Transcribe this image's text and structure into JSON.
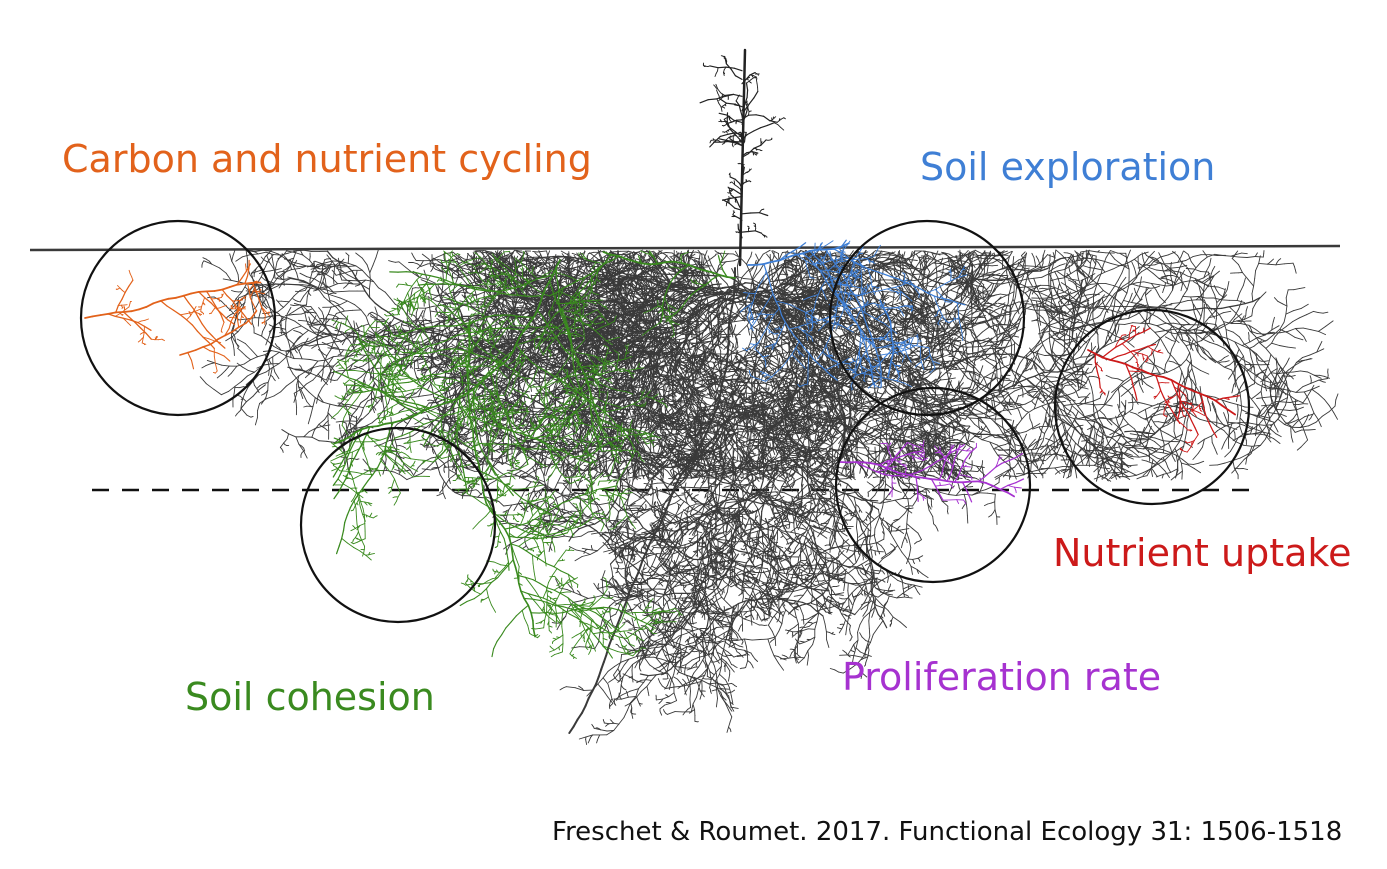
{
  "labels": {
    "carbon": "Carbon and nutrient cycling",
    "exploration": "Soil exploration",
    "cohesion": "Soil cohesion",
    "uptake": "Nutrient uptake",
    "proliferation": "Proliferation rate"
  },
  "citation": "Freschet & Roumet. 2017. Functional Ecology 31: 1506-1518",
  "colors": {
    "carbon": "#e2621b",
    "exploration": "#3f7fd5",
    "cohesion": "#3a8a1f",
    "uptake": "#cc1a1a",
    "proliferation": "#a632d0",
    "roots": "#2b2b2b"
  }
}
